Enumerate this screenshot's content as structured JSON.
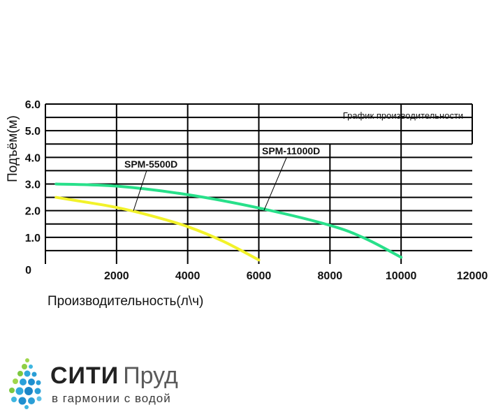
{
  "chart_data": {
    "type": "line",
    "title": "График производительности",
    "xlabel": "Производительность(л\\ч)",
    "ylabel": "Подъём(м)",
    "xlim": [
      0,
      12000
    ],
    "ylim": [
      0,
      6
    ],
    "x_ticks": [
      2000,
      4000,
      6000,
      8000,
      10000,
      12000
    ],
    "x_origin_label": "0",
    "y_ticks": [
      "1.0",
      "2.0",
      "3.0",
      "4.0",
      "5.0",
      "6.0"
    ],
    "grid": true,
    "series": [
      {
        "name": "SPM-5500D",
        "color": "#f2f22a",
        "x": [
          300,
          1000,
          2000,
          3000,
          4000,
          5000,
          6000
        ],
        "y": [
          2.5,
          2.35,
          2.12,
          1.8,
          1.4,
          0.85,
          0.15
        ]
      },
      {
        "name": "SPM-11000D",
        "color": "#28e08a",
        "x": [
          300,
          2000,
          4000,
          6000,
          8000,
          9000,
          10000
        ],
        "y": [
          3.0,
          2.92,
          2.6,
          2.1,
          1.45,
          0.95,
          0.25
        ]
      }
    ]
  },
  "logo": {
    "brand_part1": "СИТИ",
    "brand_part2": "Пруд",
    "tagline": "в гармонии с водой"
  }
}
